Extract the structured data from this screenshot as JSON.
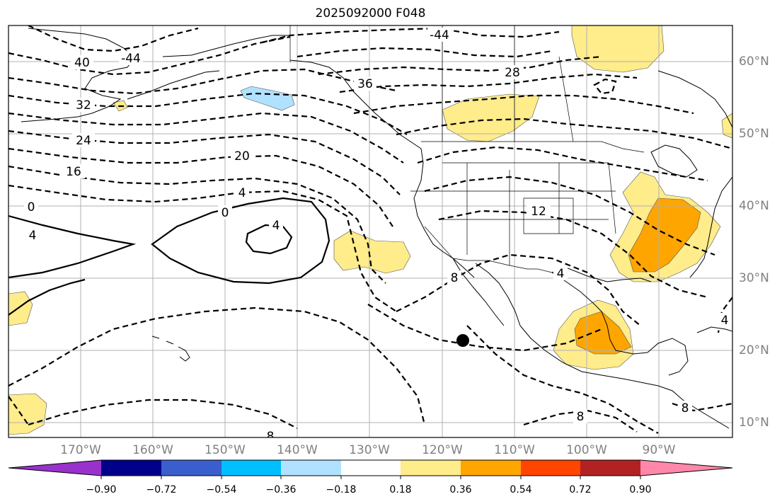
{
  "title": "2025092000 F048",
  "map": {
    "projection": "plate-carree",
    "lon_range": [
      -178,
      -78
    ],
    "lat_range": [
      8,
      65
    ],
    "gridlines": true
  },
  "lat_labels": [
    "60°N",
    "50°N",
    "40°N",
    "30°N",
    "20°N",
    "10°N"
  ],
  "lon_labels": [
    "170°W",
    "160°W",
    "150°W",
    "140°W",
    "130°W",
    "120°W",
    "110°W",
    "100°W",
    "90°W"
  ],
  "contour_labels": [
    "-44",
    "40",
    "-44",
    "36",
    "32",
    "28",
    "24",
    "20",
    "16",
    "4",
    "0",
    "0",
    "4",
    "4",
    "12",
    "8",
    "4",
    "8",
    "8",
    "8",
    "4"
  ],
  "colorbar": {
    "ticks": [
      "−0.90",
      "−0.72",
      "−0.54",
      "−0.36",
      "−0.18",
      "0.18",
      "0.36",
      "0.54",
      "0.72",
      "0.90"
    ],
    "colors": [
      "#9932cc",
      "#00008b",
      "#3a5fcd",
      "#00bfff",
      "#b0e2ff",
      "#ffffff",
      "#ffec8b",
      "#ffa500",
      "#ff4500",
      "#b22222",
      "#ff88aa"
    ],
    "extend": "both"
  },
  "marker_color": "#000000"
}
